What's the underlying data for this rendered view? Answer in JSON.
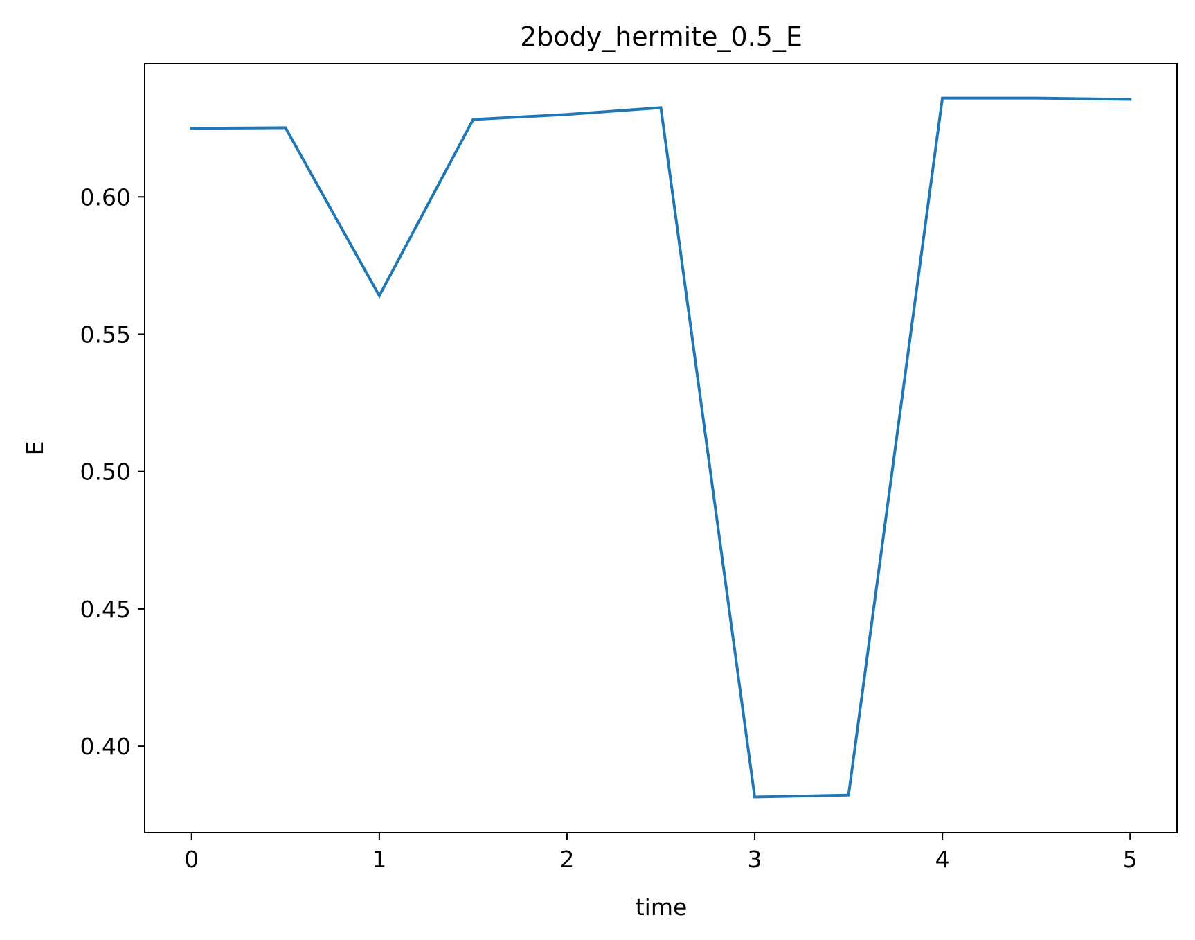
{
  "chart_data": {
    "type": "line",
    "title": "2body_hermite_0.5_E",
    "xlabel": "time",
    "ylabel": "E",
    "xlim": [
      -0.25,
      5.25
    ],
    "ylim": [
      0.3685,
      0.6485
    ],
    "xticks": [
      0,
      1,
      2,
      3,
      4,
      5
    ],
    "xtick_labels": [
      "0",
      "1",
      "2",
      "3",
      "4",
      "5"
    ],
    "yticks": [
      0.4,
      0.45,
      0.5,
      0.55,
      0.6
    ],
    "ytick_labels": [
      "0.40",
      "0.45",
      "0.50",
      "0.55",
      "0.60"
    ],
    "grid": false,
    "series": [
      {
        "color": "#1f77b4",
        "x": [
          0,
          0.5,
          1.0,
          1.5,
          2.0,
          2.5,
          3.0,
          3.5,
          4.0,
          4.5,
          5.0
        ],
        "y": [
          0.625,
          0.6252,
          0.564,
          0.6282,
          0.63,
          0.6325,
          0.3815,
          0.3822,
          0.636,
          0.636,
          0.6355
        ]
      }
    ]
  }
}
